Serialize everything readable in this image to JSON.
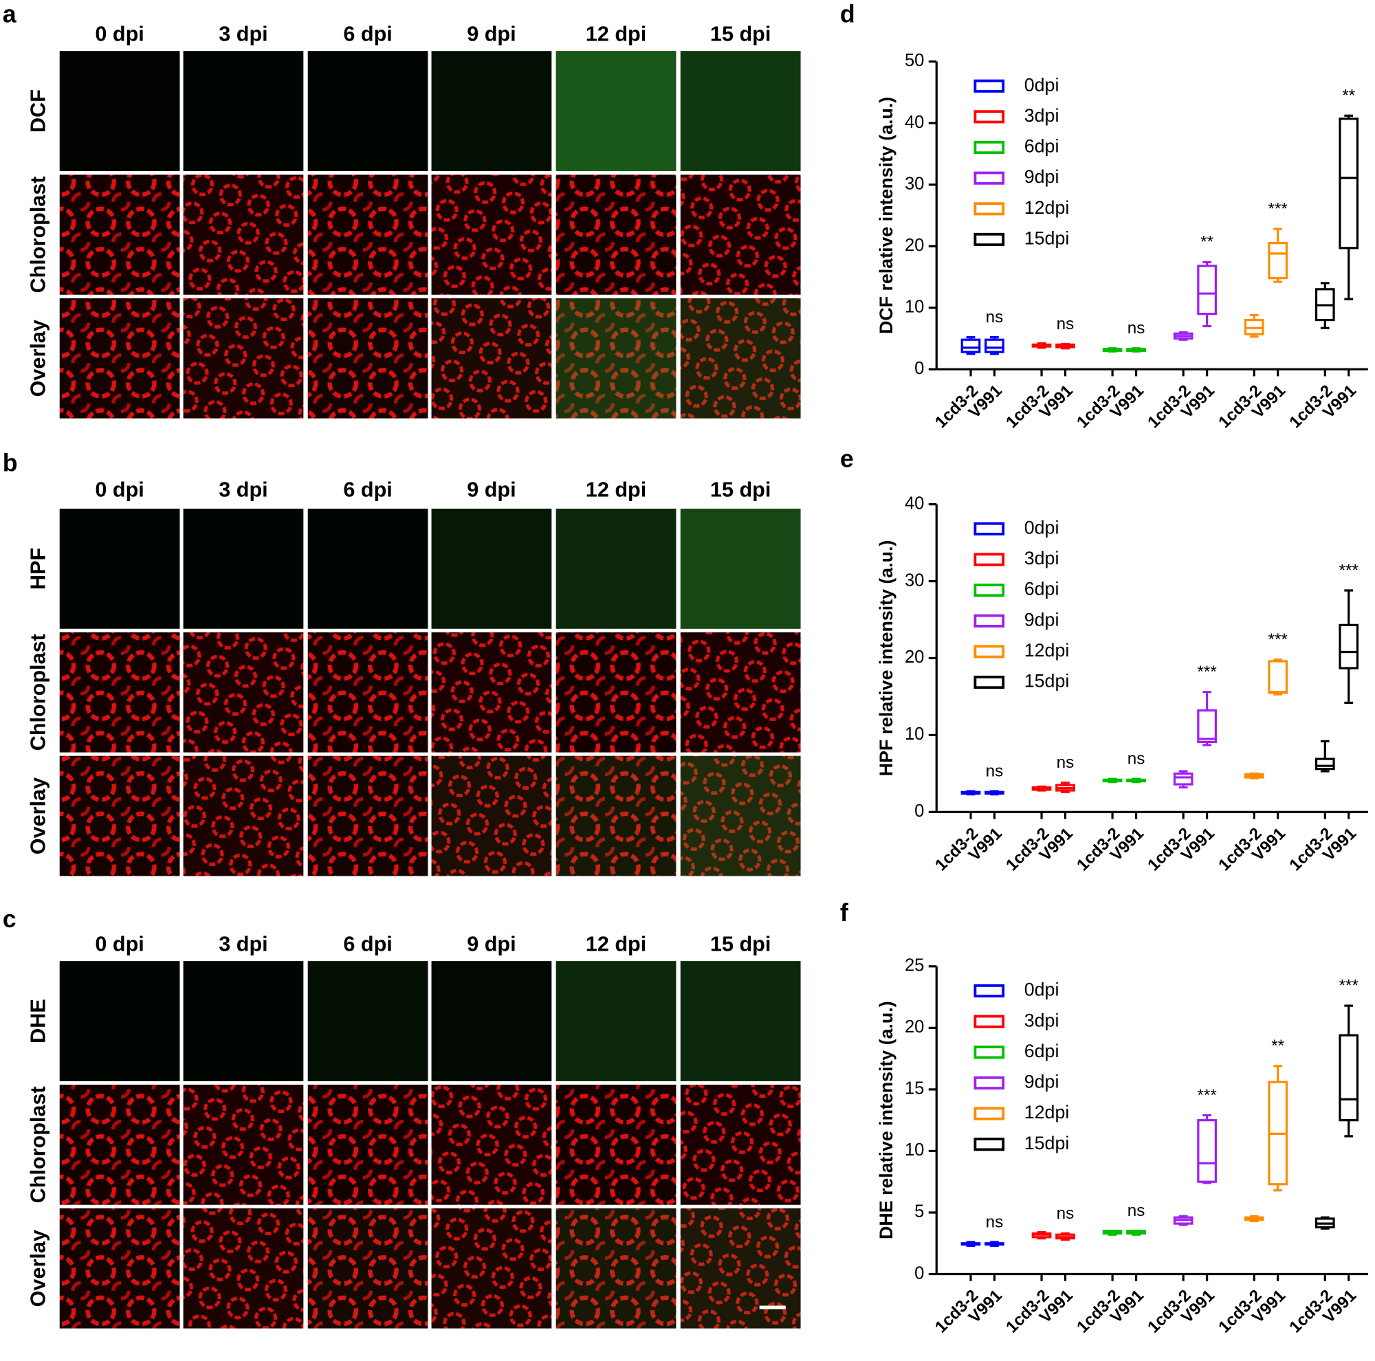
{
  "panels": [
    {
      "letter": "a",
      "columns": [
        "0 dpi",
        "3 dpi",
        "6 dpi",
        "9 dpi",
        "12 dpi",
        "15 dpi"
      ],
      "rows": [
        "DCF",
        "Chloroplast",
        "Overlay"
      ]
    },
    {
      "letter": "b",
      "columns": [
        "0 dpi",
        "3 dpi",
        "6 dpi",
        "9 dpi",
        "12 dpi",
        "15 dpi"
      ],
      "rows": [
        "HPF",
        "Chloroplast",
        "Overlay"
      ]
    },
    {
      "letter": "c",
      "columns": [
        "0 dpi",
        "3 dpi",
        "6 dpi",
        "9 dpi",
        "12 dpi",
        "15 dpi"
      ],
      "rows": [
        "DHE",
        "Chloroplast",
        "Overlay"
      ]
    }
  ],
  "chart_data": [
    {
      "type": "box",
      "panel": "d",
      "ylabel": "DCF relative intensity (a.u.)",
      "ylim": [
        0,
        50
      ],
      "yticks": [
        0,
        10,
        20,
        30,
        40,
        50
      ],
      "categories": [
        "1cd3-2",
        "V991"
      ],
      "series": [
        {
          "name": "0dpi",
          "color": "#0000ff",
          "significance": "ns",
          "values": [
            {
              "min": 2.5,
              "q1": 2.8,
              "median": 3.5,
              "q3": 4.8,
              "max": 5.2
            },
            {
              "min": 2.5,
              "q1": 2.8,
              "median": 3.5,
              "q3": 4.8,
              "max": 5.2
            }
          ]
        },
        {
          "name": "3dpi",
          "color": "#ff0000",
          "significance": "ns",
          "values": [
            {
              "min": 3.5,
              "q1": 3.7,
              "median": 3.9,
              "q3": 4.0,
              "max": 4.2
            },
            {
              "min": 3.4,
              "q1": 3.6,
              "median": 3.8,
              "q3": 4.0,
              "max": 4.1
            }
          ]
        },
        {
          "name": "6dpi",
          "color": "#00c000",
          "significance": "ns",
          "values": [
            {
              "min": 2.9,
              "q1": 3.0,
              "median": 3.1,
              "q3": 3.3,
              "max": 3.4
            },
            {
              "min": 2.9,
              "q1": 3.0,
              "median": 3.1,
              "q3": 3.3,
              "max": 3.4
            }
          ]
        },
        {
          "name": "9dpi",
          "color": "#a020f0",
          "significance": "**",
          "values": [
            {
              "min": 4.8,
              "q1": 5.0,
              "median": 5.4,
              "q3": 5.8,
              "max": 6.0
            },
            {
              "min": 7.0,
              "q1": 9.0,
              "median": 12.3,
              "q3": 16.8,
              "max": 17.4
            }
          ]
        },
        {
          "name": "12dpi",
          "color": "#ff8c00",
          "significance": "***",
          "values": [
            {
              "min": 5.3,
              "q1": 5.7,
              "median": 6.7,
              "q3": 8.0,
              "max": 8.8
            },
            {
              "min": 14.2,
              "q1": 14.8,
              "median": 18.8,
              "q3": 20.5,
              "max": 22.8
            }
          ]
        },
        {
          "name": "15dpi",
          "color": "#000000",
          "significance": "**",
          "values": [
            {
              "min": 6.7,
              "q1": 8.0,
              "median": 10.4,
              "q3": 13.0,
              "max": 14.0
            },
            {
              "min": 11.4,
              "q1": 19.7,
              "median": 31.1,
              "q3": 40.7,
              "max": 41.2
            }
          ]
        }
      ]
    },
    {
      "type": "box",
      "panel": "e",
      "ylabel": "HPF relative intensity (a.u.)",
      "ylim": [
        0,
        40
      ],
      "yticks": [
        0,
        10,
        20,
        30,
        40
      ],
      "categories": [
        "1cd3-2",
        "V991"
      ],
      "series": [
        {
          "name": "0dpi",
          "color": "#0000ff",
          "significance": "ns",
          "values": [
            {
              "min": 2.3,
              "q1": 2.4,
              "median": 2.5,
              "q3": 2.6,
              "max": 2.7
            },
            {
              "min": 2.3,
              "q1": 2.4,
              "median": 2.5,
              "q3": 2.6,
              "max": 2.7
            }
          ]
        },
        {
          "name": "3dpi",
          "color": "#ff0000",
          "significance": "ns",
          "values": [
            {
              "min": 2.8,
              "q1": 2.9,
              "median": 3.0,
              "q3": 3.2,
              "max": 3.3
            },
            {
              "min": 2.6,
              "q1": 2.8,
              "median": 3.1,
              "q3": 3.5,
              "max": 3.8
            }
          ]
        },
        {
          "name": "6dpi",
          "color": "#00c000",
          "significance": "ns",
          "values": [
            {
              "min": 3.9,
              "q1": 4.0,
              "median": 4.1,
              "q3": 4.2,
              "max": 4.3
            },
            {
              "min": 3.9,
              "q1": 4.0,
              "median": 4.1,
              "q3": 4.2,
              "max": 4.3
            }
          ]
        },
        {
          "name": "9dpi",
          "color": "#a020f0",
          "significance": "***",
          "values": [
            {
              "min": 3.2,
              "q1": 3.6,
              "median": 4.5,
              "q3": 5.0,
              "max": 5.3
            },
            {
              "min": 8.7,
              "q1": 9.1,
              "median": 9.5,
              "q3": 13.2,
              "max": 15.6
            }
          ]
        },
        {
          "name": "12dpi",
          "color": "#ff8c00",
          "significance": "***",
          "values": [
            {
              "min": 4.4,
              "q1": 4.5,
              "median": 4.7,
              "q3": 4.9,
              "max": 5.0
            },
            {
              "min": 15.3,
              "q1": 15.5,
              "median": 15.6,
              "q3": 19.6,
              "max": 19.8
            }
          ]
        },
        {
          "name": "15dpi",
          "color": "#000000",
          "significance": "***",
          "values": [
            {
              "min": 5.3,
              "q1": 5.6,
              "median": 6.0,
              "q3": 6.9,
              "max": 9.2
            },
            {
              "min": 14.2,
              "q1": 18.7,
              "median": 20.8,
              "q3": 24.3,
              "max": 28.8
            }
          ]
        }
      ]
    },
    {
      "type": "box",
      "panel": "f",
      "ylabel": "DHE relative intensity (a.u.)",
      "ylim": [
        0,
        25
      ],
      "yticks": [
        0,
        5,
        10,
        15,
        20,
        25
      ],
      "categories": [
        "1cd3-2",
        "V991"
      ],
      "series": [
        {
          "name": "0dpi",
          "color": "#0000ff",
          "significance": "ns",
          "values": [
            {
              "min": 2.3,
              "q1": 2.4,
              "median": 2.45,
              "q3": 2.5,
              "max": 2.6
            },
            {
              "min": 2.3,
              "q1": 2.4,
              "median": 2.45,
              "q3": 2.5,
              "max": 2.6
            }
          ]
        },
        {
          "name": "3dpi",
          "color": "#ff0000",
          "significance": "ns",
          "values": [
            {
              "min": 2.9,
              "q1": 3.0,
              "median": 3.2,
              "q3": 3.3,
              "max": 3.4
            },
            {
              "min": 2.8,
              "q1": 2.9,
              "median": 3.0,
              "q3": 3.2,
              "max": 3.3
            }
          ]
        },
        {
          "name": "6dpi",
          "color": "#00c000",
          "significance": "ns",
          "values": [
            {
              "min": 3.2,
              "q1": 3.3,
              "median": 3.4,
              "q3": 3.5,
              "max": 3.5
            },
            {
              "min": 3.2,
              "q1": 3.3,
              "median": 3.4,
              "q3": 3.5,
              "max": 3.5
            }
          ]
        },
        {
          "name": "9dpi",
          "color": "#a020f0",
          "significance": "***",
          "values": [
            {
              "min": 4.0,
              "q1": 4.1,
              "median": 4.4,
              "q3": 4.6,
              "max": 4.7
            },
            {
              "min": 7.4,
              "q1": 7.5,
              "median": 9.0,
              "q3": 12.5,
              "max": 12.9
            }
          ]
        },
        {
          "name": "12dpi",
          "color": "#ff8c00",
          "significance": "**",
          "values": [
            {
              "min": 4.3,
              "q1": 4.4,
              "median": 4.5,
              "q3": 4.6,
              "max": 4.7
            },
            {
              "min": 6.8,
              "q1": 7.3,
              "median": 11.4,
              "q3": 15.6,
              "max": 16.9
            }
          ]
        },
        {
          "name": "15dpi",
          "color": "#000000",
          "significance": "***",
          "values": [
            {
              "min": 3.7,
              "q1": 3.8,
              "median": 4.1,
              "q3": 4.5,
              "max": 4.6
            },
            {
              "min": 11.2,
              "q1": 12.5,
              "median": 14.2,
              "q3": 19.4,
              "max": 21.8
            }
          ]
        }
      ]
    }
  ]
}
